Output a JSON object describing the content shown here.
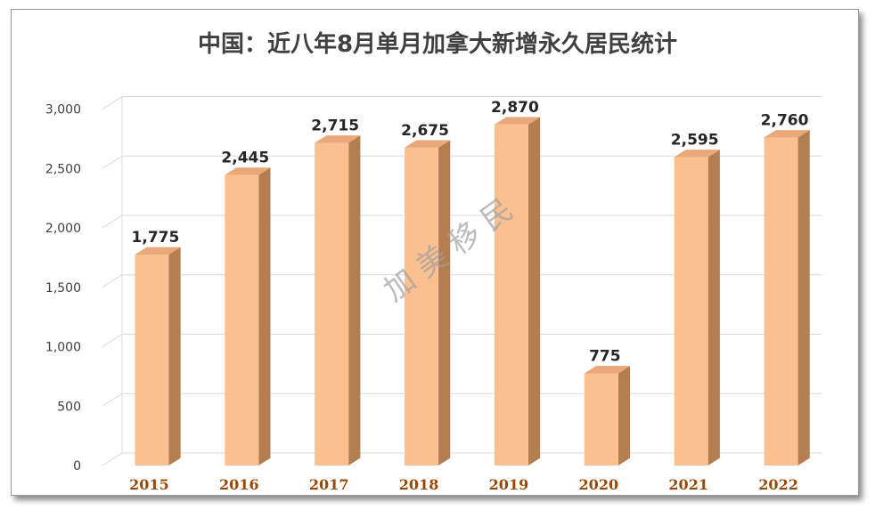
{
  "chart_data": {
    "type": "bar",
    "title": "中国：近八年8月单月加拿大新增永久居民统计",
    "categories": [
      "2015",
      "2016",
      "2017",
      "2018",
      "2019",
      "2020",
      "2021",
      "2022"
    ],
    "values": [
      1775,
      2445,
      2715,
      2675,
      2870,
      775,
      2595,
      2760
    ],
    "data_labels": [
      "1,775",
      "2,445",
      "2,715",
      "2,675",
      "2,870",
      "775",
      "2,595",
      "2,760"
    ],
    "y_ticks": [
      "0",
      "500",
      "1,000",
      "1,500",
      "2,000",
      "2,500",
      "3,000"
    ],
    "ylim": [
      0,
      3000
    ],
    "xlabel": "",
    "ylabel": "",
    "grid": true,
    "legend": "none",
    "watermark": "加 美 移 民",
    "colors": {
      "bar_front": "#FAC090",
      "bar_side": "#B47E50",
      "bar_top": "#E8A878",
      "category_label": "#984807",
      "title": "#404040",
      "grid": "#D9D9D9"
    }
  }
}
